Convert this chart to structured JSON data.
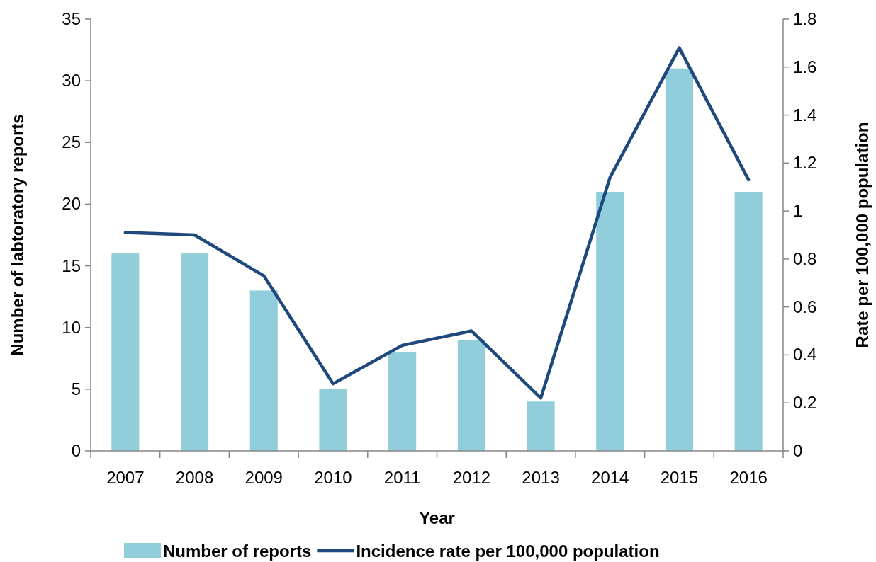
{
  "chart_data": {
    "type": "bar",
    "xlabel": "Year",
    "ylabel": "Number of labtoratory reports",
    "y2label": "Rate per 100,000 population",
    "categories": [
      "2007",
      "2008",
      "2009",
      "2010",
      "2011",
      "2012",
      "2013",
      "2014",
      "2015",
      "2016"
    ],
    "series": [
      {
        "name": "Number of reports",
        "color": "#92cddc",
        "values": [
          16,
          16,
          13,
          5,
          8,
          9,
          4,
          21,
          31,
          21
        ]
      },
      {
        "name": "Incidence rate per 100,000 population",
        "type": "line",
        "axis": "y2",
        "color": "#1f497d",
        "values": [
          0.91,
          0.9,
          0.73,
          0.28,
          0.44,
          0.5,
          0.22,
          1.14,
          1.68,
          1.13
        ]
      }
    ],
    "ylim": [
      0,
      35
    ],
    "yticks": [
      0,
      5,
      10,
      15,
      20,
      25,
      30,
      35
    ],
    "y2lim": [
      0,
      1.8
    ],
    "y2ticks": [
      0,
      {
        "value": 0.2,
        "label": "0.2"
      },
      {
        "value": 0.4,
        "label": "0.4"
      },
      {
        "value": 0.6,
        "label": "0.6"
      },
      {
        "value": 0.8,
        "label": "0.8"
      },
      1,
      {
        "value": 1.2,
        "label": "1.2"
      },
      {
        "value": 1.4,
        "label": "1.4"
      },
      {
        "value": 1.6,
        "label": "1.6"
      },
      {
        "value": 1.8,
        "label": "1.8"
      }
    ],
    "grid": false,
    "legend": "bottom",
    "marker": "none"
  }
}
